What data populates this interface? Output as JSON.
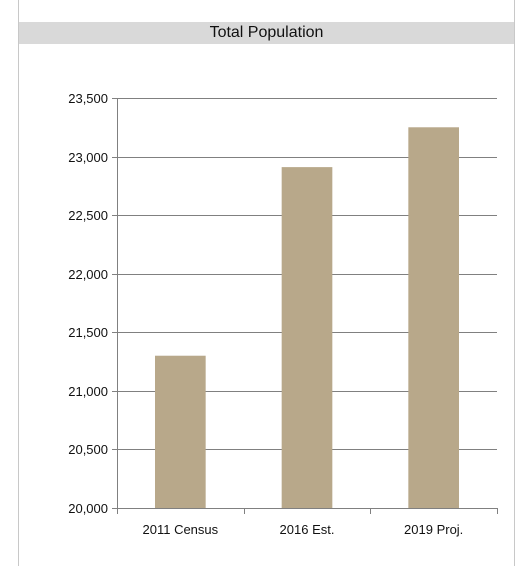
{
  "chart_data": {
    "type": "bar",
    "title": "Total Population",
    "categories": [
      "2011 Census",
      "2016 Est.",
      "2019 Proj."
    ],
    "values": [
      21300,
      22910,
      23250
    ],
    "ylim": [
      20000,
      23500
    ],
    "yticks": [
      20000,
      20500,
      21000,
      21500,
      22000,
      22500,
      23000,
      23500
    ],
    "ytick_labels": [
      "20,000",
      "20,500",
      "21,000",
      "21,500",
      "22,000",
      "22,500",
      "23,000",
      "23,500"
    ],
    "grid": true,
    "bar_color": "#b8a88a",
    "grid_color": "#808080"
  }
}
